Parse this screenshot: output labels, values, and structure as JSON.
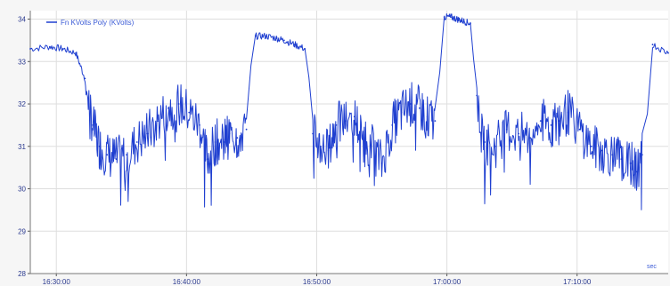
{
  "chart_data": {
    "type": "line",
    "title": "",
    "xlabel": "",
    "ylabel": "",
    "legend_position": "top-left",
    "grid": true,
    "ylim": [
      28,
      34.2
    ],
    "yticks": [
      28,
      29,
      30,
      31,
      32,
      33,
      34
    ],
    "x_tick_labels": [
      "16:30:00",
      "16:40:00",
      "16:50:00",
      "17:00:00",
      "17:10:00"
    ],
    "x_tick_minutes": [
      30,
      40,
      50,
      60,
      70
    ],
    "x_range_minutes": [
      28.0,
      77.0
    ],
    "corner_label": "sec",
    "series": [
      {
        "name": "Fn KVolts Poly (KVolts)",
        "color": "#1f3fd0",
        "x": [
          28.0,
          29.5,
          30.5,
          31.5,
          32.2,
          32.8,
          33.3,
          33.9,
          34.6,
          35.4,
          36.2,
          37.0,
          37.8,
          38.6,
          39.4,
          40.2,
          41.0,
          41.6,
          42.2,
          42.9,
          43.3,
          43.9,
          44.6,
          45.3,
          46.1,
          46.9,
          47.5,
          48.3,
          49.1,
          49.7,
          50.3,
          50.9,
          51.5,
          52.2,
          52.9,
          53.5,
          54.2,
          55.0,
          55.8,
          56.5,
          57.2,
          57.9,
          58.5,
          59.1,
          59.8,
          60.3,
          60.8,
          61.3,
          61.8,
          62.3,
          62.9,
          63.7,
          64.6,
          65.5,
          66.4,
          67.2,
          68.0,
          68.6,
          69.3,
          70.2,
          71.1,
          71.9,
          72.7,
          73.4,
          74.1,
          74.6,
          75.0,
          75.8,
          77.0
        ],
        "y": [
          33.3,
          33.35,
          33.3,
          33.2,
          32.6,
          31.5,
          31.0,
          30.8,
          30.7,
          30.8,
          31.1,
          31.3,
          31.6,
          31.9,
          32.0,
          31.8,
          31.5,
          30.7,
          31.1,
          31.1,
          31.3,
          31.2,
          31.4,
          33.6,
          33.6,
          33.55,
          33.5,
          33.4,
          33.3,
          31.3,
          31.0,
          30.9,
          31.5,
          31.6,
          31.7,
          31.2,
          31.0,
          30.6,
          31.5,
          31.8,
          32.0,
          31.9,
          31.7,
          31.6,
          34.05,
          34.05,
          34.0,
          33.95,
          33.9,
          32.2,
          31.1,
          31.0,
          31.4,
          31.3,
          31.2,
          31.6,
          31.5,
          31.6,
          31.8,
          31.4,
          31.0,
          30.9,
          30.8,
          30.7,
          30.6,
          30.4,
          30.8,
          33.4,
          33.2
        ]
      }
    ]
  }
}
